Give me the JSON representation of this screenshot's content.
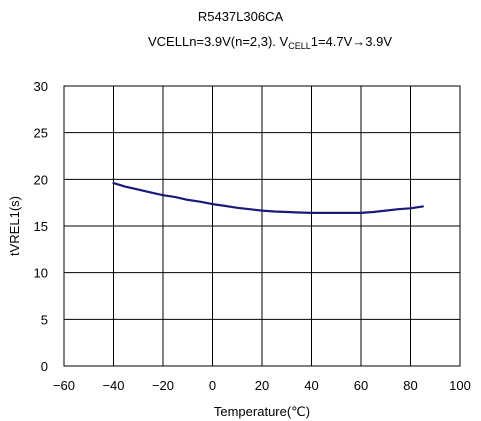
{
  "chart_data": {
    "type": "line",
    "title": "R5437L306CA",
    "subtitle": {
      "prefix": "VCELLn=3.9V(n=2,3). V",
      "sub": "CELL",
      "suffix": "1=4.7V→3.9V"
    },
    "xlabel": "Temperature(℃)",
    "ylabel": "tVREL1(s)",
    "xlim": [
      -60,
      100
    ],
    "ylim": [
      0,
      30
    ],
    "xticks": [
      -60,
      -40,
      -20,
      0,
      20,
      40,
      60,
      80,
      100
    ],
    "yticks": [
      0,
      5,
      10,
      15,
      20,
      25,
      30
    ],
    "grid": true,
    "series": [
      {
        "color": "#1a1a7a",
        "x": [
          -40,
          -35,
          -30,
          -25,
          -20,
          -15,
          -10,
          -5,
          0,
          5,
          10,
          15,
          20,
          25,
          30,
          35,
          40,
          45,
          50,
          55,
          60,
          65,
          70,
          75,
          80,
          85
        ],
        "y": [
          19.6,
          19.2,
          18.9,
          18.6,
          18.3,
          18.1,
          17.8,
          17.6,
          17.35,
          17.15,
          16.95,
          16.8,
          16.65,
          16.55,
          16.5,
          16.45,
          16.4,
          16.4,
          16.4,
          16.4,
          16.4,
          16.5,
          16.65,
          16.8,
          16.9,
          17.1
        ]
      }
    ]
  }
}
